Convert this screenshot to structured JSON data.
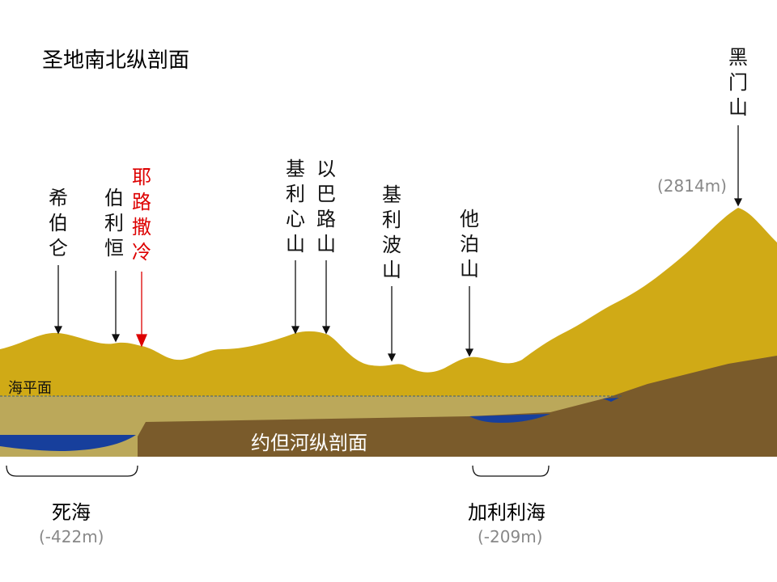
{
  "title": "圣地南北纵剖面",
  "peaks": [
    {
      "label": "希伯仑"
    },
    {
      "label": "伯利恒"
    },
    {
      "label": "耶路撒冷"
    },
    {
      "label": "基利心山"
    },
    {
      "label": "以巴路山"
    },
    {
      "label": "基利波山"
    },
    {
      "label": "他泊山"
    },
    {
      "label": "黑门山",
      "elevation": "(2814m)"
    }
  ],
  "sea_level": "海平面",
  "river": "约但河纵剖面",
  "lakes": [
    {
      "name": "死海",
      "elevation": "(-422m)"
    },
    {
      "name": "加利利海",
      "elevation": "(-209m)"
    }
  ]
}
